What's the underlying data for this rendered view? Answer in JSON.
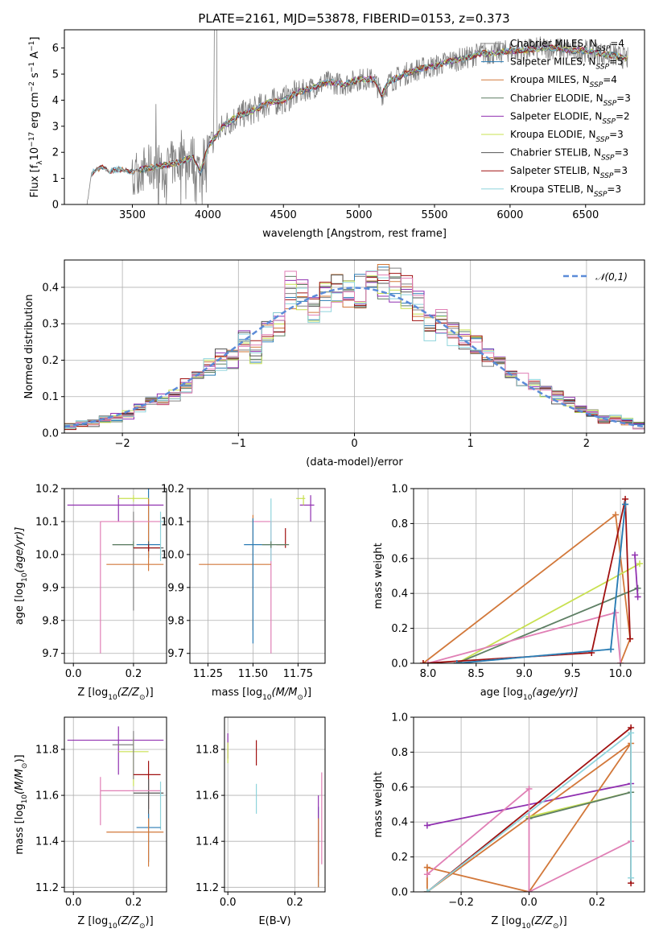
{
  "title": "PLATE=2161, MJD=53878, FIBERID=0153, z=0.373",
  "series_legend": [
    {
      "name": "Chabrier MILES, N",
      "sub": "SSP",
      "suffix": "=4",
      "color": "#808080"
    },
    {
      "name": "Salpeter MILES, N",
      "sub": "SSP",
      "suffix": "=5",
      "color": "#2a7bb4"
    },
    {
      "name": "Kroupa MILES, N",
      "sub": "SSP",
      "suffix": "=4",
      "color": "#d2783a"
    },
    {
      "name": "Chabrier ELODIE, N",
      "sub": "SSP",
      "suffix": "=3",
      "color": "#5e7f64"
    },
    {
      "name": "Salpeter ELODIE, N",
      "sub": "SSP",
      "suffix": "=2",
      "color": "#9030b0"
    },
    {
      "name": "Kroupa ELODIE, N",
      "sub": "SSP",
      "suffix": "=3",
      "color": "#c8e050"
    },
    {
      "name": "Chabrier STELIB, N",
      "sub": "SSP",
      "suffix": "=3",
      "color": "#555555"
    },
    {
      "name": "Salpeter STELIB, N",
      "sub": "SSP",
      "suffix": "=3",
      "color": "#a01010"
    },
    {
      "name": "Kroupa STELIB, N",
      "sub": "SSP",
      "suffix": "=3",
      "color": "#8fd4dc"
    }
  ],
  "chart_data": [
    {
      "type": "line",
      "id": "spectrum",
      "ylabel_pre": "Flux [f",
      "ylabel_lambda": "λ",
      "ylabel_mid": "10",
      "ylabel_exp": "−17",
      "ylabel_unit": " erg cm",
      "ylabel_exp2": "−2",
      "ylabel_unit2": " s",
      "ylabel_exp3": "−1",
      "ylabel_unit3": " A",
      "ylabel_exp4": "−1",
      "ylabel_end": "]",
      "xlabel": "wavelength [Angstrom, rest frame]",
      "xlim": [
        3050,
        6890
      ],
      "ylim": [
        0,
        6.7
      ],
      "xticks": [
        3500,
        4000,
        4500,
        5000,
        5500,
        6000,
        6500
      ],
      "yticks": [
        0,
        1,
        2,
        3,
        4,
        5,
        6
      ],
      "continuum": [
        [
          3200,
          0
        ],
        [
          3230,
          1.2
        ],
        [
          3250,
          1.3
        ],
        [
          3300,
          1.4
        ],
        [
          3350,
          1.25
        ],
        [
          3400,
          1.35
        ],
        [
          3500,
          1.25
        ],
        [
          3600,
          1.4
        ],
        [
          3700,
          1.5
        ],
        [
          3800,
          1.6
        ],
        [
          3900,
          1.8
        ],
        [
          3950,
          1.2
        ],
        [
          4000,
          2.2
        ],
        [
          4100,
          3.0
        ],
        [
          4200,
          3.4
        ],
        [
          4300,
          3.6
        ],
        [
          4400,
          3.9
        ],
        [
          4500,
          4.0
        ],
        [
          4600,
          4.3
        ],
        [
          4700,
          4.5
        ],
        [
          4800,
          4.7
        ],
        [
          4900,
          4.6
        ],
        [
          5000,
          4.8
        ],
        [
          5100,
          4.8
        ],
        [
          5150,
          4.2
        ],
        [
          5200,
          4.7
        ],
        [
          5300,
          5.0
        ],
        [
          5400,
          5.2
        ],
        [
          5500,
          5.3
        ],
        [
          5600,
          5.5
        ],
        [
          5700,
          5.6
        ],
        [
          5800,
          5.8
        ],
        [
          5900,
          5.8
        ],
        [
          6000,
          5.9
        ],
        [
          6100,
          5.9
        ],
        [
          6200,
          6.0
        ],
        [
          6300,
          6.0
        ],
        [
          6400,
          5.9
        ],
        [
          6500,
          5.9
        ],
        [
          6600,
          5.8
        ],
        [
          6700,
          5.7
        ],
        [
          6780,
          5.6
        ]
      ]
    },
    {
      "type": "line",
      "id": "residuals",
      "xlabel": "(data-model)/error",
      "ylabel": "Normed distribution",
      "xlim": [
        -2.5,
        2.5
      ],
      "ylim": [
        0,
        0.475
      ],
      "xticks": [
        -2,
        -1,
        0,
        1,
        2
      ],
      "xtick_labels": [
        "−2",
        "−1",
        "0",
        "1",
        "2"
      ],
      "yticks": [
        0,
        0.1,
        0.2,
        0.3,
        0.4
      ],
      "ytick_labels": [
        "0.0",
        "0.1",
        "0.2",
        "0.3",
        "0.4"
      ],
      "legend_label": "𝒩(0,1)",
      "gauss_color": "#5b8bd8",
      "hist_centers": [
        -2.45,
        -2.35,
        -2.25,
        -2.15,
        -2.05,
        -1.95,
        -1.85,
        -1.75,
        -1.65,
        -1.55,
        -1.45,
        -1.35,
        -1.25,
        -1.15,
        -1.05,
        -0.95,
        -0.85,
        -0.75,
        -0.65,
        -0.55,
        -0.45,
        -0.35,
        -0.25,
        -0.15,
        -0.05,
        0.05,
        0.15,
        0.25,
        0.35,
        0.45,
        0.55,
        0.65,
        0.75,
        0.85,
        0.95,
        1.05,
        1.15,
        1.25,
        1.35,
        1.45,
        1.55,
        1.65,
        1.75,
        1.85,
        1.95,
        2.05,
        2.15,
        2.25,
        2.35,
        2.45
      ],
      "hist_values": [
        0.02,
        0.025,
        0.03,
        0.035,
        0.04,
        0.05,
        0.07,
        0.08,
        0.09,
        0.11,
        0.13,
        0.15,
        0.18,
        0.2,
        0.21,
        0.25,
        0.22,
        0.27,
        0.3,
        0.4,
        0.38,
        0.34,
        0.37,
        0.39,
        0.38,
        0.39,
        0.42,
        0.41,
        0.41,
        0.39,
        0.35,
        0.29,
        0.3,
        0.27,
        0.26,
        0.24,
        0.21,
        0.18,
        0.17,
        0.14,
        0.13,
        0.12,
        0.1,
        0.08,
        0.06,
        0.05,
        0.04,
        0.04,
        0.03,
        0.02
      ]
    },
    {
      "type": "scatter",
      "id": "age_vs_Z",
      "xlabel": "Z [log",
      "xlabel_sub": "10",
      "xlabel_rest": "(Z/Z",
      "xlabel_end": ")]",
      "ylabel": "age  [log",
      "ylabel_sub": "10",
      "ylabel_rest": "(age/yr)]",
      "xlim": [
        -0.03,
        0.31
      ],
      "ylim": [
        9.67,
        10.2
      ],
      "xticks": [
        0.0,
        0.2
      ],
      "xtick_labels": [
        "0.0",
        "0.2"
      ],
      "yticks": [
        9.7,
        9.8,
        9.9,
        10.0,
        10.1,
        10.2
      ],
      "ytick_labels": [
        "9.7",
        "9.8",
        "9.9",
        "10.0",
        "10.1",
        "10.2"
      ]
    },
    {
      "type": "scatter",
      "id": "age_vs_mass",
      "xlabel": "mass [log",
      "xlabel_sub": "10",
      "xlabel_rest": "(M/M",
      "xlabel_end": ")]",
      "xlim": [
        11.15,
        11.9
      ],
      "ylim": [
        9.67,
        10.2
      ],
      "xticks": [
        11.25,
        11.5,
        11.75
      ],
      "xtick_labels": [
        "11.25",
        "11.50",
        "11.75"
      ],
      "yticks": [
        9.7,
        9.8,
        9.9,
        10.0,
        10.1,
        10.2
      ],
      "ytick_labels": [
        "9.7",
        "9.8",
        "9.9",
        "10.0",
        "10.1",
        "10.2"
      ]
    },
    {
      "type": "line",
      "id": "weight_vs_age",
      "xlabel": "age  [log",
      "xlabel_sub": "10",
      "xlabel_rest": "(age/yr)]",
      "ylabel": "mass weight",
      "xlim": [
        7.85,
        10.25
      ],
      "ylim": [
        0,
        1
      ],
      "xticks": [
        8.0,
        8.5,
        9.0,
        9.5,
        10.0
      ],
      "xtick_labels": [
        "8.0",
        "8.5",
        "9.0",
        "9.5",
        "10.0"
      ],
      "yticks": [
        0,
        0.2,
        0.4,
        0.6,
        0.8,
        1.0
      ],
      "ytick_labels": [
        "0.0",
        "0.2",
        "0.4",
        "0.6",
        "0.8",
        "1.0"
      ]
    },
    {
      "type": "scatter",
      "id": "mass_vs_Z",
      "xlabel": "Z [log",
      "xlabel_sub": "10",
      "xlabel_rest": "(Z/Z",
      "xlabel_end": ")]",
      "ylabel": "mass [log",
      "ylabel_sub": "10",
      "ylabel_rest": "(M/M",
      "ylabel_end": ")]",
      "xlim": [
        -0.03,
        0.31
      ],
      "ylim": [
        11.18,
        11.94
      ],
      "xticks": [
        0.0,
        0.2
      ],
      "xtick_labels": [
        "0.0",
        "0.2"
      ],
      "yticks": [
        11.2,
        11.4,
        11.6,
        11.8
      ],
      "ytick_labels": [
        "11.2",
        "11.4",
        "11.6",
        "11.8"
      ]
    },
    {
      "type": "scatter",
      "id": "mass_vs_ebv",
      "xlabel": "E(B-V)",
      "xlim": [
        -0.01,
        0.29
      ],
      "ylim": [
        11.18,
        11.94
      ],
      "xticks": [
        0.0,
        0.2
      ],
      "xtick_labels": [
        "0.0",
        "0.2"
      ],
      "yticks": [
        11.2,
        11.4,
        11.6,
        11.8
      ],
      "ytick_labels": [
        "11.2",
        "11.4",
        "11.6",
        "11.8"
      ]
    },
    {
      "type": "line",
      "id": "weight_vs_Z",
      "xlabel": "Z [log",
      "xlabel_sub": "10",
      "xlabel_rest": "(Z/Z",
      "xlabel_end": ")]",
      "ylabel": "mass weight",
      "xlim": [
        -0.34,
        0.34
      ],
      "ylim": [
        0,
        1
      ],
      "xticks": [
        -0.2,
        0.0,
        0.2
      ],
      "xtick_labels": [
        "−0.2",
        "0.0",
        "0.2"
      ],
      "yticks": [
        0,
        0.2,
        0.4,
        0.6,
        0.8,
        1.0
      ],
      "ytick_labels": [
        "0.0",
        "0.2",
        "0.4",
        "0.6",
        "0.8",
        "1.0"
      ]
    }
  ],
  "ssp_models": {
    "age_Z": [
      {
        "c": "#808080",
        "pts": [
          [
            0.2,
            10.03,
            0.07,
            0.0,
            0.2,
            0.1
          ]
        ]
      },
      {
        "c": "#2a7bb4",
        "pts": [
          [
            0.25,
            10.03,
            0.04,
            0.04,
            0.04,
            0.3
          ]
        ]
      },
      {
        "c": "#d2783a",
        "pts": [
          [
            0.25,
            9.97,
            0.14,
            0.05,
            0.02,
            0.2
          ]
        ]
      },
      {
        "c": "#5e7f64",
        "pts": [
          [
            0.2,
            10.03,
            0.07,
            0.0,
            0.01,
            0.01
          ]
        ]
      },
      {
        "c": "#9030b0",
        "pts": [
          [
            0.15,
            10.15,
            0.17,
            0.15,
            0.05,
            0.03
          ]
        ]
      },
      {
        "c": "#c8e050",
        "pts": [
          [
            0.2,
            10.17,
            0.05,
            0.05,
            0.01,
            0.01
          ]
        ]
      },
      {
        "c": "#555555",
        "pts": [
          [
            0.25,
            10.02,
            0.05,
            0.05,
            0.01,
            0.02
          ]
        ]
      },
      {
        "c": "#a01010",
        "pts": [
          [
            0.25,
            10.02,
            0.05,
            0.04,
            0.01,
            0.01
          ]
        ]
      },
      {
        "c": "#8fd4dc",
        "pts": [
          [
            0.29,
            10.1,
            0.0,
            0.01,
            0.12,
            0.03
          ]
        ]
      },
      {
        "c": "#e07fb5",
        "pts": [
          [
            0.09,
            10.1,
            0.0,
            0.2,
            0.4,
            0.0
          ]
        ]
      }
    ],
    "weight_age_lines": [
      {
        "c": "#d2783a",
        "pts": [
          [
            7.95,
            0.0
          ],
          [
            9.95,
            0.85
          ],
          [
            10.1,
            0.14
          ],
          [
            10.0,
            0.0
          ]
        ]
      },
      {
        "c": "#c8e050",
        "pts": [
          [
            8.3,
            0.0
          ],
          [
            10.2,
            0.57
          ]
        ]
      },
      {
        "c": "#5e7f64",
        "pts": [
          [
            8.3,
            0.0
          ],
          [
            10.18,
            0.43
          ]
        ]
      },
      {
        "c": "#9030b0",
        "pts": [
          [
            10.15,
            0.62
          ],
          [
            10.18,
            0.38
          ]
        ]
      },
      {
        "c": "#e07fb5",
        "pts": [
          [
            8.0,
            0.0
          ],
          [
            9.95,
            0.29
          ],
          [
            10.0,
            0.0
          ]
        ]
      },
      {
        "c": "#a01010",
        "pts": [
          [
            7.95,
            0.0
          ],
          [
            9.7,
            0.06
          ],
          [
            10.05,
            0.94
          ],
          [
            10.1,
            0.14
          ]
        ]
      },
      {
        "c": "#8fd4dc",
        "pts": [
          [
            8.3,
            0.0
          ],
          [
            9.9,
            0.08
          ],
          [
            10.05,
            0.91
          ]
        ]
      },
      {
        "c": "#2a7bb4",
        "pts": [
          [
            8.3,
            0.0
          ],
          [
            9.9,
            0.08
          ],
          [
            10.05,
            0.91
          ]
        ]
      }
    ],
    "weight_Z_lines": [
      {
        "c": "#9030b0",
        "pts": [
          [
            -0.3,
            0.38
          ],
          [
            0.3,
            0.62
          ]
        ]
      },
      {
        "c": "#a01010",
        "pts": [
          [
            -0.3,
            0.0
          ],
          [
            0.3,
            0.94
          ],
          [
            0.3,
            0.05
          ]
        ]
      },
      {
        "c": "#d2783a",
        "pts": [
          [
            -0.3,
            0.14
          ],
          [
            0.0,
            0.0
          ],
          [
            0.3,
            0.85
          ],
          [
            -0.3,
            0.0
          ],
          [
            -0.3,
            0.14
          ]
        ]
      },
      {
        "c": "#c8e050",
        "pts": [
          [
            0.0,
            0.43
          ],
          [
            0.3,
            0.57
          ]
        ]
      },
      {
        "c": "#5e7f64",
        "pts": [
          [
            0.0,
            0.42
          ],
          [
            0.3,
            0.57
          ]
        ]
      },
      {
        "c": "#e07fb5",
        "pts": [
          [
            -0.3,
            0.1
          ],
          [
            0.0,
            0.59
          ],
          [
            0.0,
            0.0
          ],
          [
            0.3,
            0.29
          ]
        ]
      },
      {
        "c": "#8fd4dc",
        "pts": [
          [
            -0.3,
            0.0
          ],
          [
            0.3,
            0.91
          ],
          [
            0.3,
            0.08
          ]
        ]
      }
    ],
    "mass_Z": [
      {
        "c": "#9030b0",
        "pts": [
          [
            0.15,
            11.84,
            0.17,
            0.15
          ]
        ]
      },
      {
        "c": "#c8e050",
        "pts": [
          [
            0.2,
            11.79,
            0.05,
            0.05
          ]
        ]
      },
      {
        "c": "#808080",
        "pts": [
          [
            0.2,
            11.82,
            0.07,
            0.0
          ]
        ]
      },
      {
        "c": "#a01010",
        "pts": [
          [
            0.25,
            11.69,
            0.05,
            0.04
          ]
        ]
      },
      {
        "c": "#555555",
        "pts": [
          [
            0.25,
            11.61,
            0.05,
            0.05
          ]
        ]
      },
      {
        "c": "#8fd4dc",
        "pts": [
          [
            0.29,
            11.6,
            0.0,
            0.01
          ]
        ]
      },
      {
        "c": "#e07fb5",
        "pts": [
          [
            0.09,
            11.62,
            0.0,
            0.2
          ]
        ]
      },
      {
        "c": "#2a7bb4",
        "pts": [
          [
            0.25,
            11.46,
            0.04,
            0.04
          ]
        ]
      },
      {
        "c": "#d2783a",
        "pts": [
          [
            0.25,
            11.44,
            0.14,
            0.05
          ]
        ]
      }
    ]
  }
}
